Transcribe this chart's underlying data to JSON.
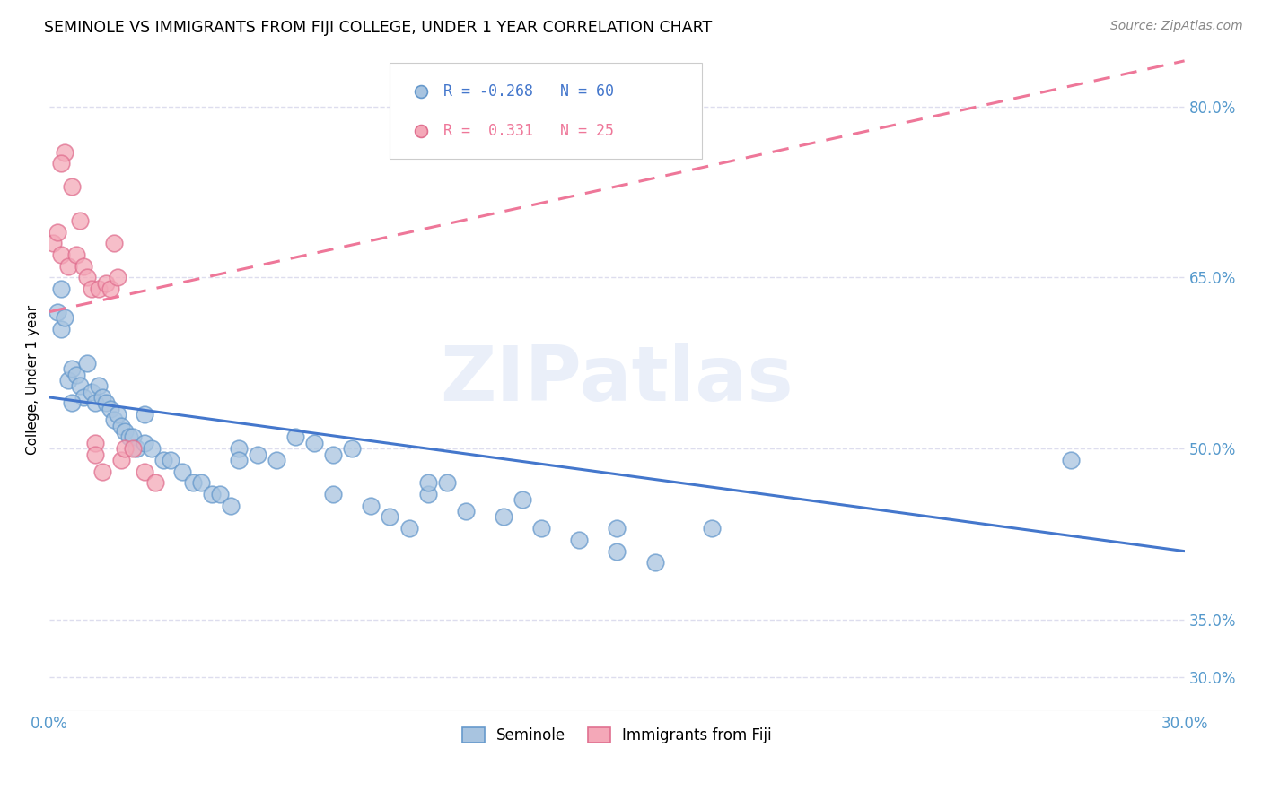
{
  "title": "SEMINOLE VS IMMIGRANTS FROM FIJI COLLEGE, UNDER 1 YEAR CORRELATION CHART",
  "source": "Source: ZipAtlas.com",
  "ylabel": "College, Under 1 year",
  "xlim": [
    0.0,
    0.3
  ],
  "ylim": [
    0.27,
    0.85
  ],
  "yticks": [
    0.3,
    0.35,
    0.5,
    0.65,
    0.8
  ],
  "ytick_labels": [
    "30.0%",
    "35.0%",
    "50.0%",
    "65.0%",
    "80.0%"
  ],
  "xticks": [
    0.0,
    0.05,
    0.1,
    0.15,
    0.2,
    0.25,
    0.3
  ],
  "xtick_labels": [
    "0.0%",
    "",
    "",
    "",
    "",
    "",
    "30.0%"
  ],
  "watermark": "ZIPatlas",
  "blue_fill": "#A8C4E0",
  "blue_edge": "#6699CC",
  "pink_fill": "#F4A8B8",
  "pink_edge": "#E07090",
  "blue_line_color": "#4477CC",
  "pink_line_color": "#EE7799",
  "axis_tick_color": "#5599CC",
  "grid_color": "#DDDDEE",
  "R_blue": -0.268,
  "N_blue": 60,
  "R_pink": 0.331,
  "N_pink": 25,
  "blue_scatter_x": [
    0.002,
    0.003,
    0.004,
    0.005,
    0.006,
    0.007,
    0.008,
    0.009,
    0.01,
    0.011,
    0.012,
    0.013,
    0.014,
    0.015,
    0.016,
    0.017,
    0.018,
    0.019,
    0.02,
    0.021,
    0.022,
    0.023,
    0.025,
    0.027,
    0.03,
    0.032,
    0.035,
    0.038,
    0.04,
    0.043,
    0.045,
    0.048,
    0.05,
    0.055,
    0.06,
    0.065,
    0.07,
    0.075,
    0.08,
    0.085,
    0.09,
    0.095,
    0.1,
    0.105,
    0.11,
    0.12,
    0.13,
    0.14,
    0.15,
    0.16,
    0.003,
    0.006,
    0.025,
    0.05,
    0.075,
    0.1,
    0.125,
    0.15,
    0.175,
    0.27
  ],
  "blue_scatter_y": [
    0.62,
    0.605,
    0.615,
    0.56,
    0.57,
    0.565,
    0.555,
    0.545,
    0.575,
    0.55,
    0.54,
    0.555,
    0.545,
    0.54,
    0.535,
    0.525,
    0.53,
    0.52,
    0.515,
    0.51,
    0.51,
    0.5,
    0.505,
    0.5,
    0.49,
    0.49,
    0.48,
    0.47,
    0.47,
    0.46,
    0.46,
    0.45,
    0.5,
    0.495,
    0.49,
    0.51,
    0.505,
    0.495,
    0.5,
    0.45,
    0.44,
    0.43,
    0.46,
    0.47,
    0.445,
    0.44,
    0.43,
    0.42,
    0.41,
    0.4,
    0.64,
    0.54,
    0.53,
    0.49,
    0.46,
    0.47,
    0.455,
    0.43,
    0.43,
    0.49
  ],
  "pink_scatter_x": [
    0.001,
    0.002,
    0.003,
    0.004,
    0.005,
    0.006,
    0.007,
    0.008,
    0.009,
    0.01,
    0.011,
    0.012,
    0.013,
    0.014,
    0.015,
    0.016,
    0.017,
    0.018,
    0.019,
    0.02,
    0.022,
    0.025,
    0.028,
    0.003,
    0.012
  ],
  "pink_scatter_y": [
    0.68,
    0.69,
    0.67,
    0.76,
    0.66,
    0.73,
    0.67,
    0.7,
    0.66,
    0.65,
    0.64,
    0.505,
    0.64,
    0.48,
    0.645,
    0.64,
    0.68,
    0.65,
    0.49,
    0.5,
    0.5,
    0.48,
    0.47,
    0.75,
    0.495
  ],
  "blue_trend_x": [
    0.0,
    0.3
  ],
  "blue_trend_y": [
    0.545,
    0.41
  ],
  "pink_trend_x": [
    0.0,
    0.3
  ],
  "pink_trend_y": [
    0.62,
    0.84
  ],
  "legend_R_blue_text": "R = -0.268   N = 60",
  "legend_R_pink_text": "R =  0.331   N = 25"
}
